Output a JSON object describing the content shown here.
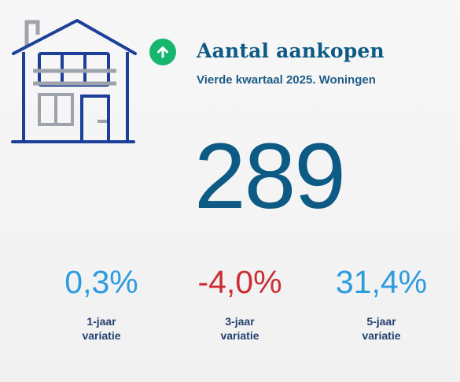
{
  "header": {
    "title": "Aantal aankopen",
    "subtitle": "Vierde kwartaal 2025. Woningen",
    "trend_icon": "arrow-up-icon",
    "house_icon": "house-icon"
  },
  "main": {
    "value": "289"
  },
  "metrics": [
    {
      "value": "0,3%",
      "label_line1": "1-jaar",
      "label_line2": "variatie",
      "color": "#2c9be0"
    },
    {
      "value": "-4,0%",
      "label_line1": "3-jaar",
      "label_line2": "variatie",
      "color": "#cc2c32"
    },
    {
      "value": "31,4%",
      "label_line1": "5-jaar",
      "label_line2": "variatie",
      "color": "#2c9be0"
    }
  ],
  "colors": {
    "accent": "#0d5a84",
    "trend_green": "#17b66f",
    "house_blue": "#1c3f9a",
    "house_gray": "#9ea3ab"
  }
}
